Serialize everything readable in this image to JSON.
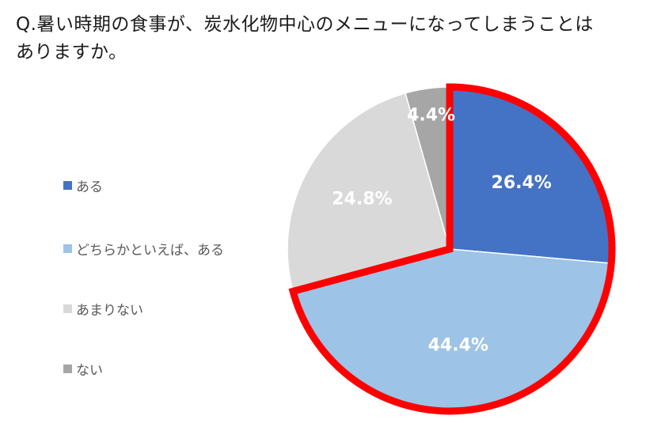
{
  "question": {
    "line1": "Q.暑い時期の食事が、炭水化物中心のメニューになってしまうことは",
    "line2": "ありますか。"
  },
  "chart_data": {
    "type": "pie",
    "title": "Q.暑い時期の食事が、炭水化物中心のメニューになってしまうことはありますか。",
    "start_angle_deg": 0,
    "direction": "clockwise",
    "slices": [
      {
        "label": "ある",
        "value": 26.4,
        "display": "26.4%",
        "color": "#4472c4"
      },
      {
        "label": "どちらかといえば、ある",
        "value": 44.4,
        "display": "44.4%",
        "color": "#9dc3e6"
      },
      {
        "label": "あまりない",
        "value": 24.8,
        "display": "24.8%",
        "color": "#d9d9d9"
      },
      {
        "label": "ない",
        "value": 4.4,
        "display": "4.4%",
        "color": "#a6a6a6"
      }
    ],
    "highlight": {
      "slices": [
        "ある",
        "どちらかといえば、ある"
      ],
      "outline_color": "#ff0000"
    },
    "legend_position": "left"
  }
}
